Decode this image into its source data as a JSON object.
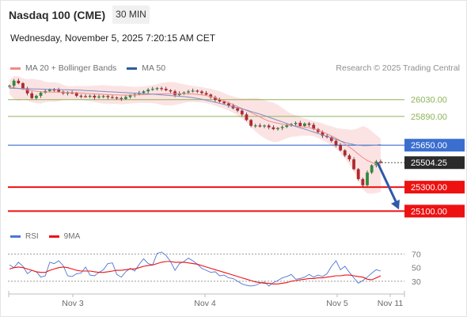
{
  "header": {
    "instrument": "Nasdaq 100 (CME)",
    "timeframe": "30 MIN",
    "datetime": "Wednesday, November 5, 2025 7:20:15 AM CET"
  },
  "legend": {
    "items": [
      {
        "label": "MA 20 + Bollinger Bands",
        "color": "#f08a8a"
      },
      {
        "label": "MA 50",
        "color": "#2e5a9c"
      }
    ],
    "credit": "Research © 2025 Trading Central"
  },
  "chart_data": {
    "type": "candlestick",
    "x_axis_labels": [
      "Nov 3",
      "Nov 4",
      "Nov 5",
      "Nov 11"
    ],
    "price_range": [
      25010,
      26200
    ],
    "levels": [
      {
        "label": "26030.00",
        "value": 26030,
        "color": "#8db35a",
        "style": "thin"
      },
      {
        "label": "25890.00",
        "value": 25890,
        "color": "#8db35a",
        "style": "thin"
      },
      {
        "label": "25650.00",
        "value": 25650,
        "color": "#3a6fd0",
        "style": "pivot"
      },
      {
        "label": "25504.25",
        "value": 25504.25,
        "color": "#333333",
        "style": "current"
      },
      {
        "label": "25300.00",
        "value": 25300,
        "color": "#ee1111",
        "style": "target"
      },
      {
        "label": "25100.00",
        "value": 25100,
        "color": "#ee1111",
        "style": "target"
      }
    ],
    "close_series": [
      26146,
      26188,
      26167,
      26124,
      26082,
      26043,
      26062,
      26088,
      26102,
      26114,
      26112,
      26096,
      26082,
      26088,
      26086,
      26062,
      26058,
      26056,
      26062,
      26048,
      26056,
      26060,
      26051,
      26048,
      26043,
      26036,
      26052,
      26066,
      26075,
      26086,
      26099,
      26113,
      26119,
      26126,
      26120,
      26108,
      26099,
      26068,
      26082,
      26090,
      26099,
      26105,
      26098,
      26085,
      26072,
      26050,
      26028,
      26014,
      25999,
      25980,
      25958,
      25938,
      25907,
      25860,
      25812,
      25815,
      25806,
      25814,
      25799,
      25784,
      25793,
      25802,
      25816,
      25826,
      25836,
      25810,
      25831,
      25820,
      25784,
      25760,
      25728,
      25716,
      25686,
      25651,
      25607,
      25564,
      25532,
      25450,
      25367,
      25316,
      25422,
      25482,
      25514,
      25504
    ],
    "ma20_series": [
      26135,
      26129,
      26123,
      26117,
      26111,
      26106,
      26100,
      26095,
      26094,
      26094,
      26093,
      26092,
      26090,
      26089,
      26088,
      26087,
      26085,
      26082,
      26080,
      26078,
      26076,
      26074,
      26072,
      26070,
      26069,
      26068,
      26068,
      26068,
      26069,
      26070,
      26072,
      26074,
      26076,
      26077,
      26078,
      26079,
      26079,
      26080,
      26080,
      26080,
      26080,
      26078,
      26074,
      26070,
      26064,
      26056,
      26045,
      26033,
      26019,
      26004,
      25988,
      25972,
      25956,
      25940,
      25922,
      25904,
      25886,
      25867,
      25851,
      25841,
      25833,
      25826,
      25820,
      25815,
      25811,
      25806,
      25801,
      25796,
      25787,
      25777,
      25761,
      25745,
      25727,
      25708,
      25686,
      25661,
      25635,
      25606,
      25575,
      25546,
      25522,
      25506,
      25492,
      25482
    ],
    "ma50_series": [
      26125,
      26124,
      26123,
      26122,
      26121,
      26120,
      26119,
      26118,
      26117,
      26116,
      26115,
      26114,
      26113,
      26112,
      26111,
      26110,
      26108,
      26106,
      26104,
      26102,
      26100,
      26098,
      26096,
      26094,
      26092,
      26090,
      26088,
      26086,
      26084,
      26082,
      26080,
      26078,
      26076,
      26073,
      26070,
      26067,
      26064,
      26061,
      26058,
      26055,
      26051,
      26046,
      26040,
      26033,
      26025,
      26017,
      26008,
      25999,
      25990,
      25980,
      25971,
      25962,
      25953,
      25943,
      25931,
      25920,
      25909,
      25897,
      25883,
      25870,
      25857,
      25844,
      25831,
      25818,
      25806,
      25795,
      25784,
      25772,
      25760,
      25748,
      25736,
      25724,
      25711,
      25698,
      25685,
      25673,
      25663,
      25655,
      25649,
      25646,
      25646,
      25648,
      25651,
      25655
    ],
    "rsi": {
      "ticks": [
        "70",
        "50",
        "30"
      ],
      "tick_values": [
        70,
        50,
        30
      ],
      "levels": [
        70,
        30
      ],
      "ylim": [
        10,
        80
      ],
      "rsi_series": [
        54,
        50,
        58,
        52,
        41,
        46,
        44,
        36,
        38,
        58,
        56,
        60,
        53,
        38,
        37,
        41,
        42,
        51,
        39,
        38,
        43,
        47,
        56,
        57,
        40,
        36,
        44,
        49,
        45,
        55,
        63,
        56,
        54,
        71,
        73,
        68,
        59,
        46,
        56,
        59,
        64,
        60,
        55,
        49,
        46,
        43,
        44,
        38,
        39,
        35,
        34,
        30,
        26,
        24,
        23,
        24,
        27,
        29,
        23,
        28,
        31,
        35,
        37,
        40,
        33,
        34,
        36,
        40,
        36,
        39,
        37,
        41,
        52,
        60,
        47,
        52,
        43,
        35,
        27,
        31,
        36,
        42,
        47,
        45
      ],
      "ma9_series": [
        48,
        50,
        51,
        50,
        48,
        46,
        44,
        43,
        43,
        46,
        48,
        50,
        51,
        50,
        48,
        46,
        45,
        45,
        45,
        44,
        43,
        43,
        44,
        45,
        46,
        46,
        47,
        48,
        48,
        50,
        52,
        53,
        54,
        56,
        58,
        59,
        59,
        58,
        58,
        58,
        57,
        56,
        55,
        53,
        51,
        49,
        47,
        45,
        43,
        41,
        39,
        37,
        35,
        33,
        31,
        29,
        28,
        27,
        27,
        26,
        26,
        27,
        28,
        30,
        31,
        32,
        33,
        34,
        34,
        35,
        35,
        36,
        37,
        38,
        38,
        39,
        39,
        38,
        37,
        36,
        33,
        32,
        35,
        38
      ]
    }
  },
  "rsi_legend": {
    "items": [
      {
        "label": "RSI",
        "color": "#4a77d4"
      },
      {
        "label": "9MA",
        "color": "#ee1111"
      }
    ]
  }
}
